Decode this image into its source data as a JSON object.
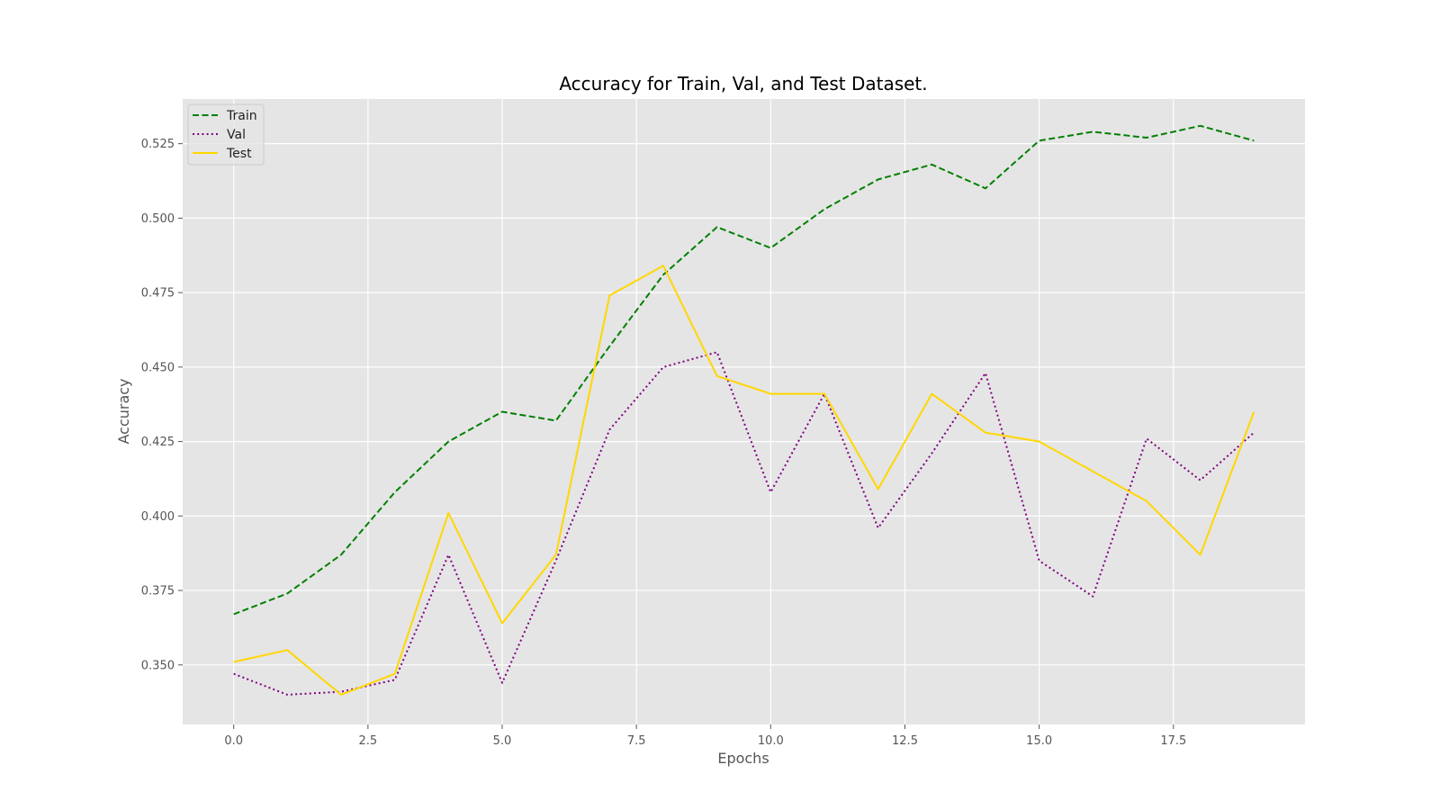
{
  "chart_data": {
    "type": "line",
    "title": "Accuracy for Train, Val, and Test Dataset.",
    "xlabel": "Epochs",
    "ylabel": "Accuracy",
    "xlim": [
      -0.95,
      19.95
    ],
    "ylim": [
      0.33,
      0.54
    ],
    "x_ticks": [
      0.0,
      2.5,
      5.0,
      7.5,
      10.0,
      12.5,
      15.0,
      17.5
    ],
    "x_tick_labels": [
      "0.0",
      "2.5",
      "5.0",
      "7.5",
      "10.0",
      "12.5",
      "15.0",
      "17.5"
    ],
    "y_ticks": [
      0.35,
      0.375,
      0.4,
      0.425,
      0.45,
      0.475,
      0.5,
      0.525
    ],
    "y_tick_labels": [
      "0.350",
      "0.375",
      "0.400",
      "0.425",
      "0.450",
      "0.475",
      "0.500",
      "0.525"
    ],
    "grid": true,
    "legend_position": "top-left",
    "x": [
      0,
      1,
      2,
      3,
      4,
      5,
      6,
      7,
      8,
      9,
      10,
      11,
      12,
      13,
      14,
      15,
      16,
      17,
      18,
      19
    ],
    "series": [
      {
        "name": "Train",
        "color": "#008000",
        "style": "dashed",
        "values": [
          0.367,
          0.374,
          0.387,
          0.408,
          0.425,
          0.435,
          0.432,
          0.457,
          0.481,
          0.497,
          0.49,
          0.503,
          0.513,
          0.518,
          0.51,
          0.526,
          0.529,
          0.527,
          0.531,
          0.526
        ]
      },
      {
        "name": "Val",
        "color": "#800080",
        "style": "dotted",
        "values": [
          0.347,
          0.34,
          0.341,
          0.345,
          0.387,
          0.344,
          0.385,
          0.429,
          0.45,
          0.455,
          0.408,
          0.441,
          0.396,
          0.421,
          0.448,
          0.385,
          0.373,
          0.426,
          0.412,
          0.428
        ]
      },
      {
        "name": "Test",
        "color": "#FFD700",
        "style": "solid",
        "values": [
          0.351,
          0.355,
          0.34,
          0.347,
          0.401,
          0.364,
          0.387,
          0.474,
          0.484,
          0.447,
          0.441,
          0.441,
          0.409,
          0.441,
          0.428,
          0.425,
          0.415,
          0.405,
          0.387,
          0.435
        ]
      }
    ]
  }
}
